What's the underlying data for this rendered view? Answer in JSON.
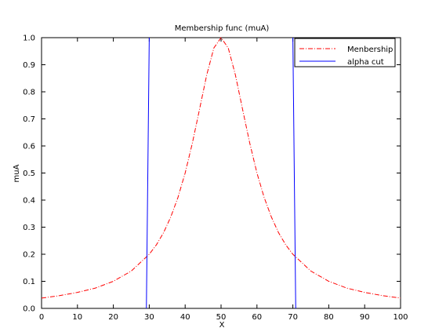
{
  "chart_data": {
    "type": "line",
    "title": "Membership func (muA)",
    "xlabel": "X",
    "ylabel": "muA",
    "xlim": [
      0,
      100
    ],
    "ylim": [
      0,
      1
    ],
    "x_ticks": [
      0,
      10,
      20,
      30,
      40,
      50,
      60,
      70,
      80,
      90,
      100
    ],
    "y_ticks": [
      0.0,
      0.1,
      0.2,
      0.3,
      0.4,
      0.5,
      0.6,
      0.7,
      0.8,
      0.9,
      1.0
    ],
    "y_tick_labels": [
      "0.0",
      "0.1",
      "0.2",
      "0.3",
      "0.4",
      "0.5",
      "0.6",
      "0.7",
      "0.8",
      "0.9",
      "1.0"
    ],
    "grid": false,
    "legend_position": "top-right",
    "series": [
      {
        "name": "Menbership",
        "color": "#ff0000",
        "style": "dash-dot",
        "x": [
          0,
          5,
          10,
          15,
          20,
          25,
          30,
          32,
          34,
          36,
          38,
          40,
          42,
          44,
          46,
          48,
          50,
          52,
          54,
          56,
          58,
          60,
          62,
          64,
          66,
          68,
          70,
          75,
          80,
          85,
          90,
          95,
          100
        ],
        "y": [
          0.038,
          0.047,
          0.059,
          0.075,
          0.1,
          0.138,
          0.2,
          0.235,
          0.28,
          0.338,
          0.41,
          0.5,
          0.61,
          0.735,
          0.862,
          0.962,
          1.0,
          0.962,
          0.862,
          0.735,
          0.61,
          0.5,
          0.41,
          0.338,
          0.28,
          0.235,
          0.2,
          0.138,
          0.1,
          0.075,
          0.059,
          0.047,
          0.038
        ]
      },
      {
        "name": "alpha cut",
        "color": "#0000ff",
        "style": "solid",
        "segments": [
          {
            "x": [
              29.2,
              30.0
            ],
            "y": [
              0.0,
              1.0
            ]
          },
          {
            "x": [
              70.0,
              70.8
            ],
            "y": [
              1.0,
              0.0
            ]
          }
        ]
      }
    ]
  }
}
